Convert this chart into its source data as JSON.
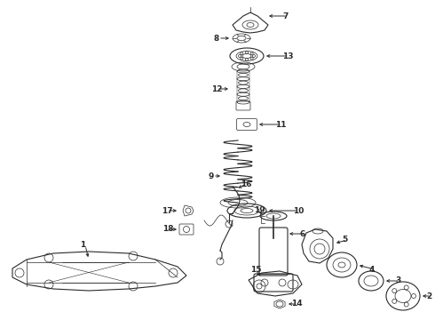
{
  "bg_color": "#ffffff",
  "line_color": "#2a2a2a",
  "lw_thin": 0.5,
  "lw_med": 0.8,
  "lw_thick": 1.2,
  "label_fontsize": 6.5,
  "figsize": [
    4.9,
    3.6
  ],
  "dpi": 100
}
